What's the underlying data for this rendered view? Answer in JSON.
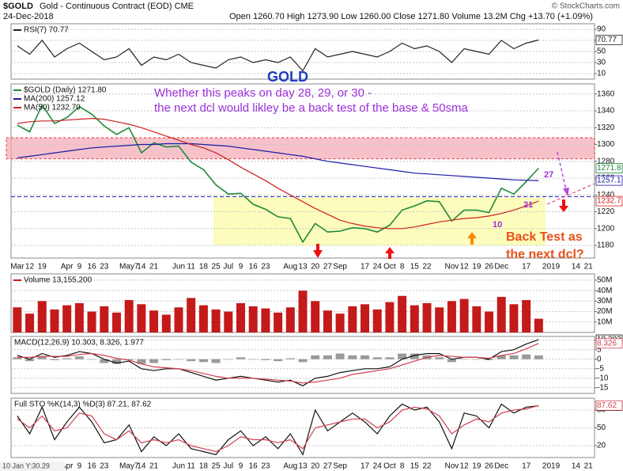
{
  "header": {
    "symbol": "$GOLD",
    "name": "Gold - Continuous Contract (EOD) CME",
    "date": "24-Dec-2018",
    "quote": "Open 1260.70 High 1273.90 Low 1260.00 Close 1271.80 Volume 13.2M Chg +13.70 (+1.09%)",
    "source": "© StockCharts.com"
  },
  "footer": "10 Jan Y:30.29",
  "chart_data": [
    {
      "type": "line",
      "ylim": [
        0,
        100
      ],
      "yticks": [
        10,
        30,
        50,
        70,
        90
      ],
      "grid": true,
      "series": [
        {
          "name": "RSI(7) 70.77",
          "color": "#222222",
          "values": [
            60,
            45,
            70,
            40,
            55,
            65,
            50,
            35,
            40,
            55,
            25,
            40,
            35,
            45,
            30,
            25,
            20,
            35,
            40,
            30,
            35,
            30,
            40,
            15,
            55,
            40,
            45,
            50,
            45,
            40,
            50,
            65,
            55,
            60,
            50,
            30,
            55,
            50,
            45,
            70,
            55,
            65,
            70.77,
            null,
            null,
            null,
            null
          ]
        }
      ]
    },
    {
      "type": "line",
      "ylim": [
        1165,
        1372
      ],
      "yticks": [
        1180,
        1200,
        1220,
        1240,
        1260,
        1280,
        1300,
        1320,
        1340,
        1360
      ],
      "grid": true,
      "categories": [
        "Mar",
        "12",
        "19",
        null,
        "Apr",
        "9",
        "16",
        "23",
        null,
        "May7",
        "14",
        "21",
        null,
        "Jun",
        "11",
        "18",
        "25",
        "Jul",
        "9",
        "16",
        "23",
        null,
        "Aug",
        "13",
        "20",
        "27",
        "Sep",
        null,
        "17",
        "24",
        "Oct",
        "8",
        "15",
        "22",
        null,
        "Nov",
        "12",
        "19",
        "26",
        "Dec",
        null,
        "17",
        null,
        "2019",
        null,
        "14",
        "21"
      ],
      "zones": [
        {
          "from": 1283,
          "to": 1308,
          "color": "#f4a6b4"
        },
        {
          "from": 1180,
          "to": 1237,
          "color": "#fbfba0"
        }
      ],
      "lines": [
        {
          "value": 1238,
          "color": "#1a1aa6"
        }
      ],
      "annotations": [
        "GOLD",
        "Whether this peaks on day 28, 29, or 30 -",
        "the next dcl would likley be a back test of the base & 50sma",
        "Back Test as",
        "the next dcl?",
        "21",
        "10",
        "27"
      ],
      "series": [
        {
          "name": "$GOLD (Daily) 1271.80",
          "color": "#1e8a3a",
          "values": [
            1323,
            1315,
            1347,
            1325,
            1332,
            1345,
            1336,
            1322,
            1312,
            1320,
            1290,
            1302,
            1297,
            1298,
            1279,
            1270,
            1252,
            1241,
            1242,
            1229,
            1223,
            1214,
            1212,
            1184,
            1206,
            1196,
            1197,
            1201,
            1200,
            1196,
            1204,
            1222,
            1227,
            1233,
            1232,
            1209,
            1222,
            1222,
            1219,
            1248,
            1241,
            1256,
            1271.8,
            null,
            null,
            null,
            null
          ]
        },
        {
          "name": "MA(200) 1257.12",
          "color": "#1a1aa6",
          "values": [
            1284,
            1286,
            1288,
            1290,
            1292,
            1294,
            1296,
            1297,
            1298,
            1299,
            1300,
            1300,
            1301,
            1301,
            1301,
            1300,
            1299,
            1298,
            1296,
            1294,
            1292,
            1290,
            1288,
            1286,
            1283,
            1280,
            1278,
            1276,
            1274,
            1272,
            1270,
            1268,
            1266,
            1265,
            1264,
            1263,
            1262,
            1261,
            1260,
            1259,
            1258,
            1257.5,
            1257.12,
            null,
            null,
            null,
            null
          ],
          "value_labels": [
            null,
            null,
            null,
            null,
            null,
            null,
            null,
            null,
            null,
            null,
            null,
            null,
            null,
            null,
            null,
            null,
            null,
            null,
            null,
            null,
            null,
            null,
            null,
            null,
            null,
            null,
            null,
            null,
            null,
            null,
            null,
            null,
            null,
            null,
            null,
            null,
            null,
            null,
            null,
            null,
            null,
            null,
            "1257.1",
            null,
            null,
            null,
            null
          ]
        },
        {
          "name": "MA(50) 1232.70",
          "color": "#cc2222",
          "values": [
            1325,
            1327,
            1328,
            1328,
            1329,
            1330,
            1331,
            1330,
            1327,
            1324,
            1320,
            1315,
            1310,
            1305,
            1300,
            1296,
            1290,
            1282,
            1273,
            1265,
            1257,
            1248,
            1240,
            1232,
            1224,
            1217,
            1210,
            1206,
            1203,
            1201,
            1200,
            1200,
            1202,
            1205,
            1208,
            1210,
            1212,
            1213,
            1215,
            1218,
            1222,
            1227,
            1232.7,
            null,
            null,
            null,
            null
          ],
          "value_labels": [
            null,
            null,
            null,
            null,
            null,
            null,
            null,
            null,
            null,
            null,
            null,
            null,
            null,
            null,
            null,
            null,
            null,
            null,
            null,
            null,
            null,
            null,
            null,
            null,
            null,
            null,
            null,
            null,
            null,
            null,
            null,
            null,
            null,
            null,
            null,
            null,
            null,
            null,
            null,
            null,
            null,
            null,
            "1232.7",
            null,
            null,
            null,
            null
          ]
        }
      ]
    },
    {
      "type": "bar",
      "ylim": [
        0,
        56000000
      ],
      "yticks": [
        {
          "value": 10000000,
          "label": "10M"
        },
        {
          "value": 20000000,
          "label": "20M"
        },
        {
          "value": 30000000,
          "label": "30M"
        },
        {
          "value": 40000000,
          "label": "40M"
        },
        {
          "value": 50000000,
          "label": "50M"
        }
      ],
      "grid": true,
      "series": [
        {
          "name": "Volume 13,155,200",
          "color": "#c41a1a",
          "values": [
            24000000,
            18000000,
            30000000,
            22000000,
            26000000,
            28000000,
            20000000,
            25000000,
            19000000,
            31000000,
            27000000,
            21000000,
            17000000,
            24000000,
            33000000,
            26000000,
            22000000,
            20000000,
            28000000,
            25000000,
            23000000,
            19000000,
            24000000,
            40000000,
            30000000,
            21000000,
            18000000,
            25000000,
            27000000,
            22000000,
            29000000,
            35000000,
            26000000,
            28000000,
            24000000,
            30000000,
            32000000,
            25000000,
            20000000,
            34000000,
            27000000,
            31000000,
            13155200,
            null,
            null,
            null,
            null
          ]
        }
      ]
    },
    {
      "type": "line",
      "title": "MACD(12,26,9) 10.303, 8.326, 1.977",
      "ylim": [
        -18,
        12
      ],
      "yticks": [
        -15,
        -10,
        -5,
        0,
        5,
        10
      ],
      "grid": true,
      "series": [
        {
          "type": "bar",
          "color": "#9a9a9a",
          "values": [
            1,
            -1,
            1.5,
            -0.5,
            0.5,
            1.5,
            0,
            -2,
            -2.5,
            -0.5,
            -2.5,
            -2,
            -0.5,
            0,
            -1,
            -1.5,
            -2,
            0,
            1,
            0,
            -0.5,
            -1,
            0.5,
            -1.5,
            2,
            2,
            3,
            2,
            2,
            1,
            1,
            3,
            3,
            2,
            1,
            -1.5,
            0,
            0,
            -0.5,
            2,
            2,
            2.5,
            1.977,
            null,
            null,
            null,
            null
          ]
        },
        {
          "color": "#111111",
          "values": [
            2,
            0,
            3,
            1,
            2,
            4,
            3,
            0,
            -2,
            -1,
            -5,
            -6,
            -5,
            -5,
            -7,
            -9,
            -11,
            -10,
            -9,
            -10,
            -11,
            -12,
            -11,
            -14,
            -10,
            -9,
            -7,
            -6,
            -5,
            -5,
            -4,
            0,
            2,
            3,
            3,
            0,
            1,
            1,
            0,
            4,
            5,
            8,
            10.303,
            null,
            null,
            null,
            null
          ]
        },
        {
          "color": "#d04050",
          "values": [
            1,
            1,
            1.5,
            1.5,
            1.5,
            2.5,
            3,
            2,
            0.5,
            -0.5,
            -2.5,
            -4,
            -4.5,
            -5,
            -6,
            -7.5,
            -9,
            -10,
            -10,
            -10,
            -10.5,
            -11,
            -11.5,
            -12.5,
            -12,
            -11,
            -10,
            -8,
            -7,
            -6,
            -5,
            -3,
            -1,
            1,
            2,
            1.5,
            1,
            1,
            0.5,
            2,
            3,
            5.5,
            8.326,
            null,
            null,
            null,
            null
          ]
        }
      ]
    },
    {
      "type": "line",
      "title": "Full STO %K(14,3) %D(3) 87.21, 87.62",
      "ylim": [
        0,
        100
      ],
      "yticks": [
        20,
        50,
        80
      ],
      "grid": true,
      "series": [
        {
          "color": "#111111",
          "values": [
            70,
            40,
            85,
            30,
            60,
            85,
            60,
            25,
            30,
            55,
            10,
            35,
            20,
            40,
            15,
            10,
            5,
            30,
            45,
            20,
            35,
            15,
            40,
            5,
            80,
            45,
            60,
            75,
            60,
            40,
            70,
            90,
            80,
            85,
            60,
            15,
            75,
            70,
            50,
            90,
            75,
            85,
            87.21,
            null,
            null,
            null,
            null
          ]
        },
        {
          "color": "#d04050",
          "values": [
            65,
            50,
            70,
            45,
            50,
            75,
            70,
            40,
            30,
            45,
            25,
            30,
            25,
            30,
            20,
            15,
            10,
            20,
            35,
            30,
            30,
            25,
            30,
            15,
            50,
            55,
            60,
            65,
            65,
            50,
            60,
            80,
            85,
            82,
            70,
            40,
            55,
            65,
            60,
            75,
            80,
            82,
            87.62,
            null,
            null,
            null,
            null
          ]
        }
      ]
    }
  ]
}
